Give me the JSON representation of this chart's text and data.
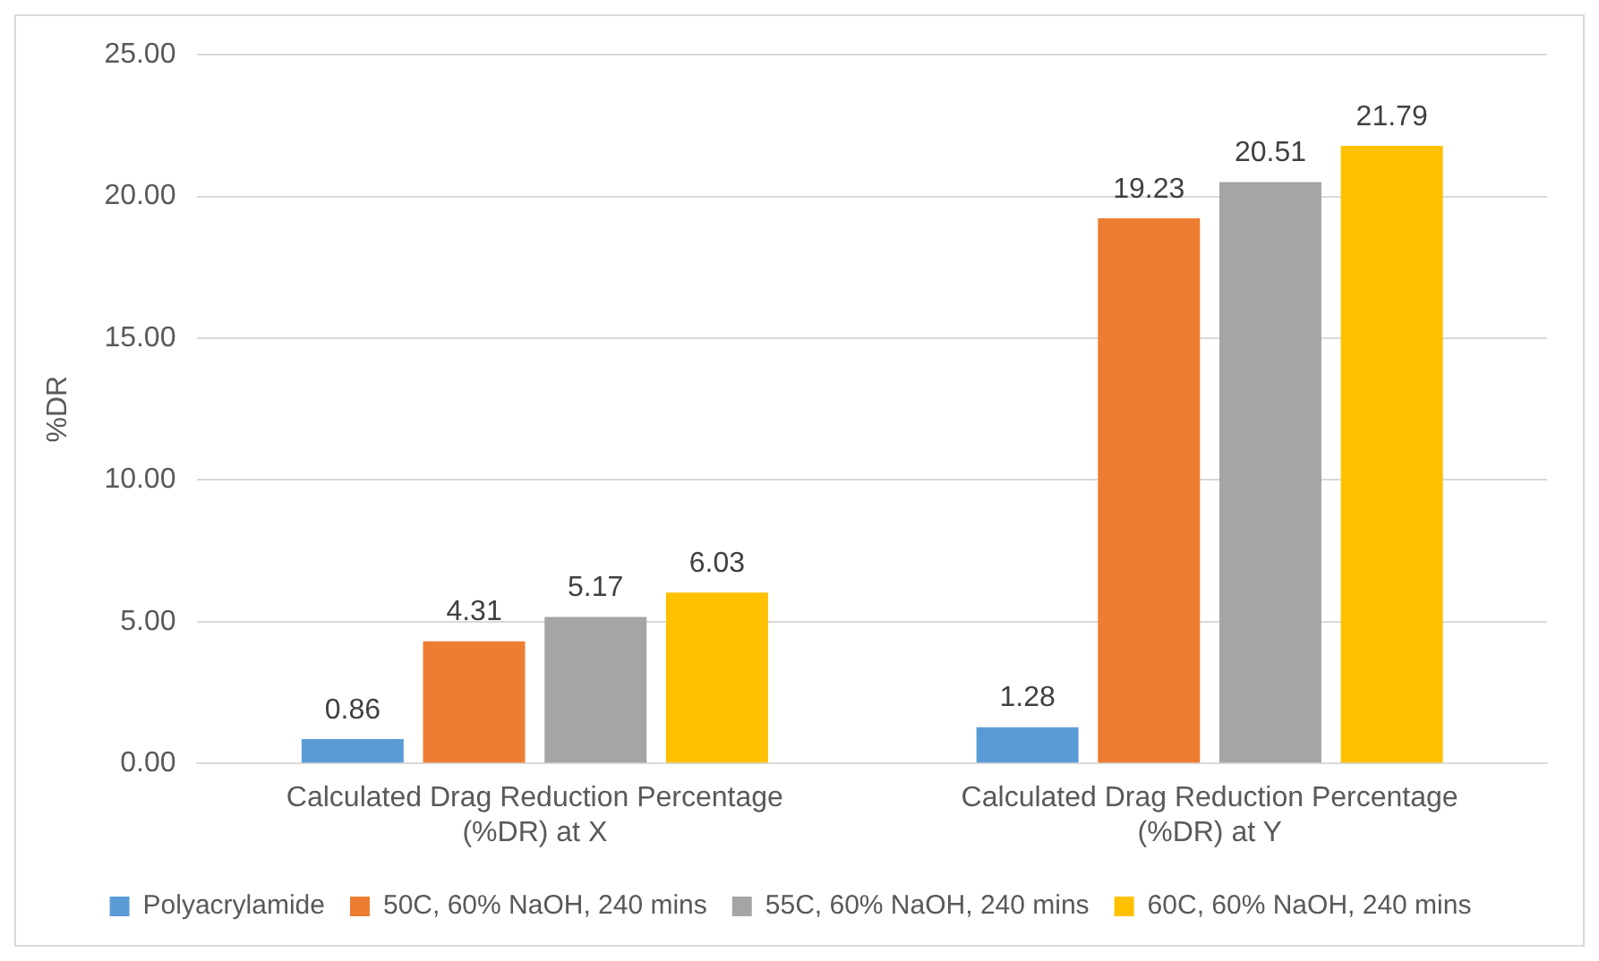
{
  "chart_data": {
    "type": "bar",
    "ylabel": "%DR",
    "categories": [
      "Calculated Drag Reduction Percentage (%DR) at X",
      "Calculated Drag Reduction Percentage (%DR) at Y"
    ],
    "series": [
      {
        "name": "Polyacrylamide",
        "color": "#5b9bd5",
        "values": [
          0.86,
          1.28
        ]
      },
      {
        "name": "50C, 60% NaOH, 240 mins",
        "color": "#ed7d31",
        "values": [
          4.31,
          19.23
        ]
      },
      {
        "name": "55C, 60% NaOH, 240 mins",
        "color": "#a5a5a5",
        "values": [
          5.17,
          20.51
        ]
      },
      {
        "name": "60C, 60% NaOH, 240 mins",
        "color": "#ffc000",
        "values": [
          6.03,
          21.79
        ]
      }
    ],
    "ylim": [
      0,
      25
    ],
    "yticks": [
      {
        "value": 0,
        "label": "0.00"
      },
      {
        "value": 5,
        "label": "5.00"
      },
      {
        "value": 10,
        "label": "10.00"
      },
      {
        "value": 15,
        "label": "15.00"
      },
      {
        "value": 20,
        "label": "20.00"
      },
      {
        "value": 25,
        "label": "25.00"
      }
    ],
    "grid": "y",
    "legend": "bottom",
    "data_labels": true
  }
}
